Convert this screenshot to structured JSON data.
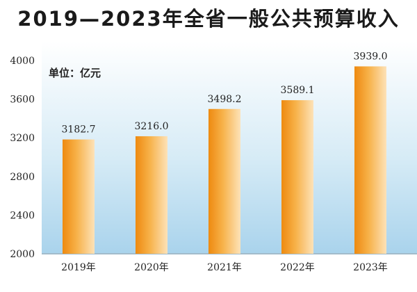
{
  "chart_data": {
    "type": "bar",
    "title": "2019—2023年全省一般公共预算收入",
    "unit": "单位：亿元",
    "categories": [
      "2019年",
      "2020年",
      "2021年",
      "2022年",
      "2023年"
    ],
    "values": [
      3182.7,
      3216.0,
      3498.2,
      3589.1,
      3939.0
    ],
    "value_labels": [
      "3182.7",
      "3216.0",
      "3498.2",
      "3589.1",
      "3939.0"
    ],
    "yticks": [
      2000,
      2400,
      2800,
      3200,
      3600,
      4000
    ],
    "ylim": [
      2000,
      4000
    ],
    "grid": false,
    "colors": {
      "bar_dark": "#ee8a10",
      "bar_mid": "#f7b24a",
      "bar_light": "#fde2b8",
      "background_top": "#ffffff",
      "background_bottom": "#a9d3ec",
      "axis": "#9aa3aa",
      "text": "#222222"
    }
  }
}
